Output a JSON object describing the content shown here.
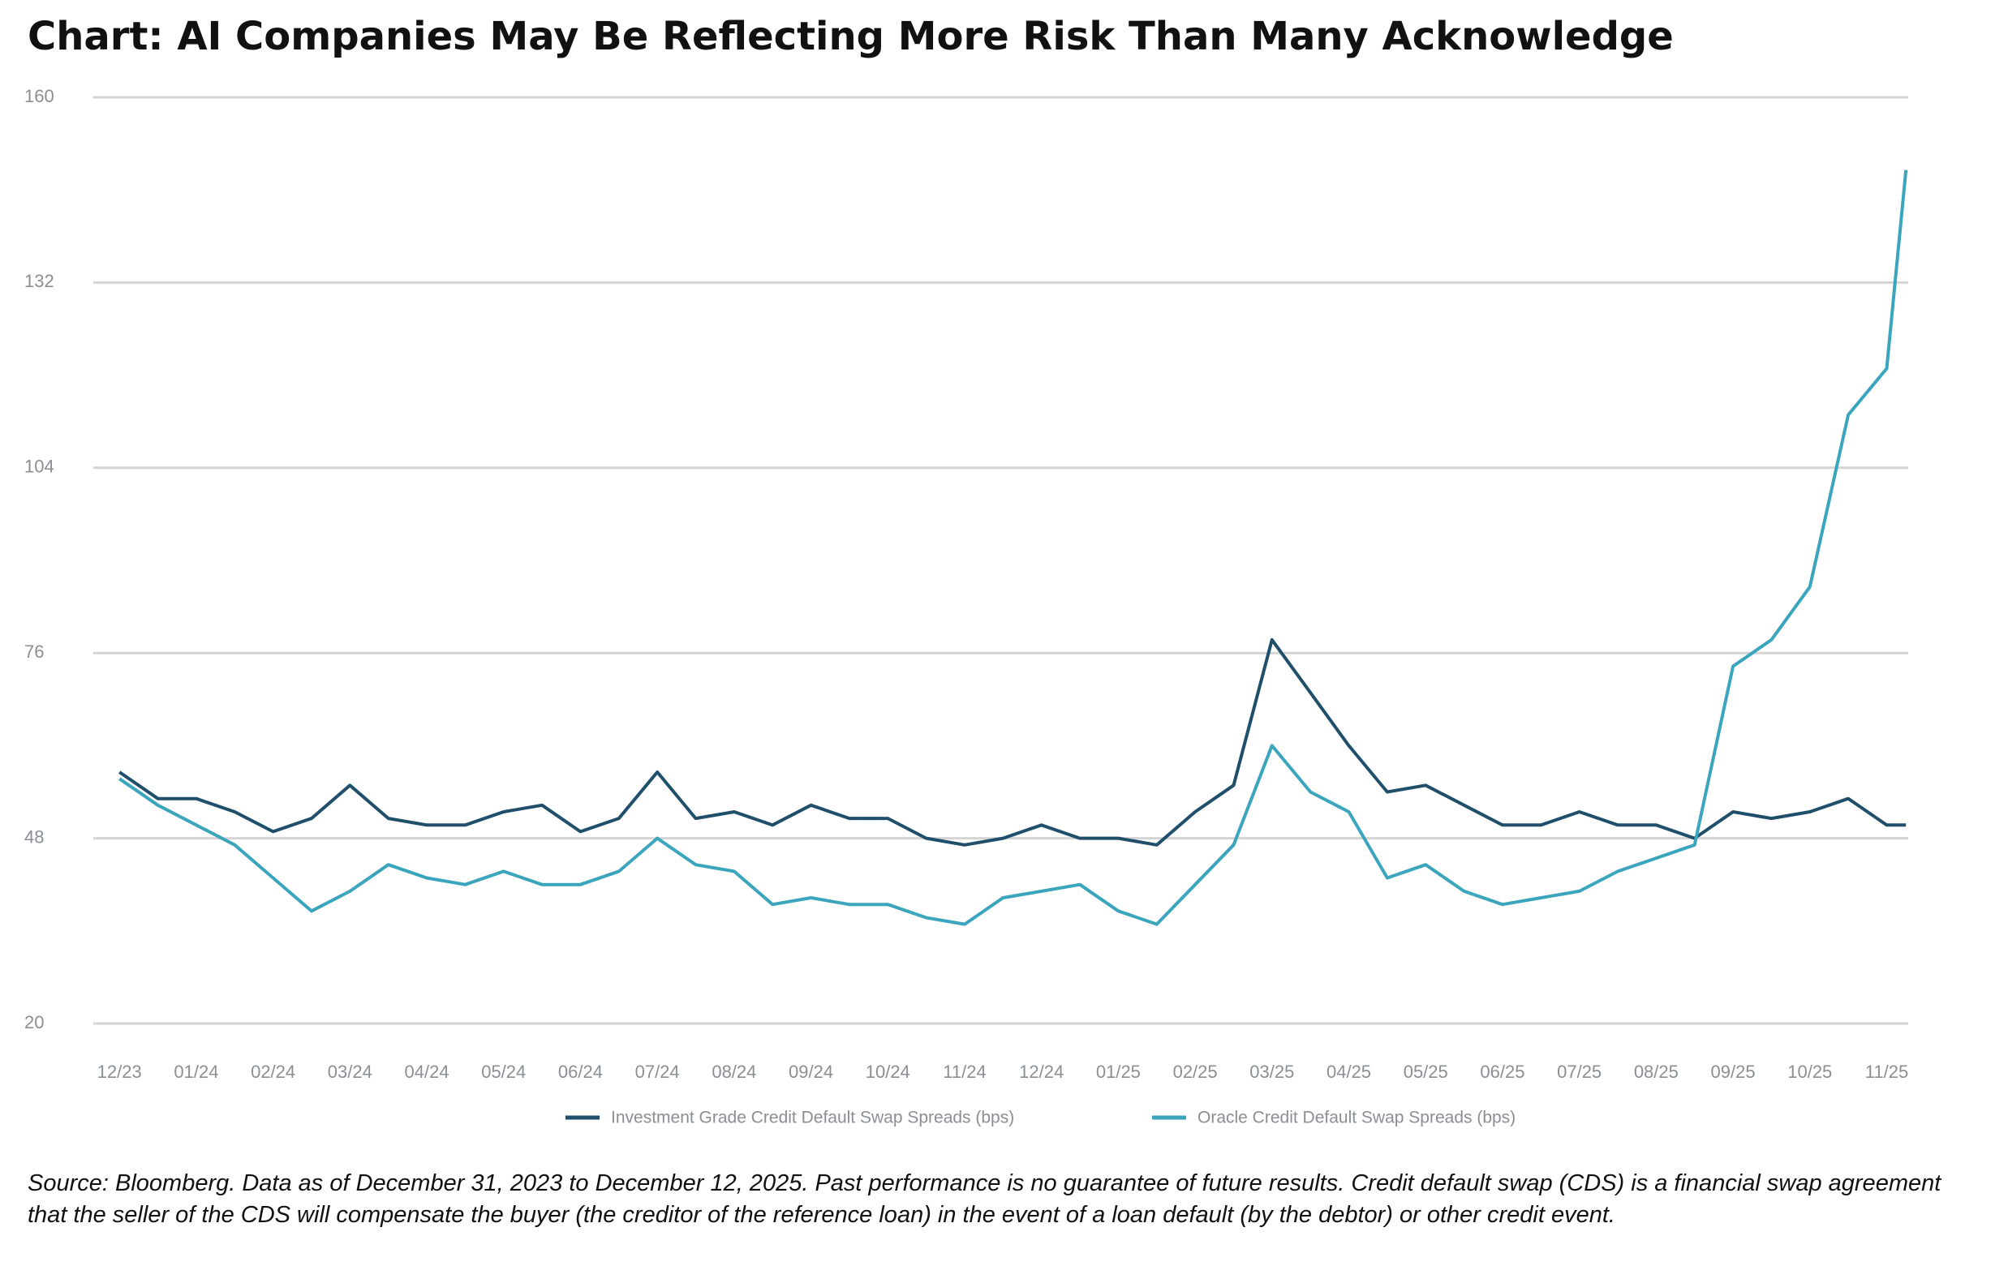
{
  "chart_data": {
    "type": "line",
    "title": "Chart: AI Companies May Be Reflecting More Risk Than Many Acknowledge",
    "note": "Source: Bloomberg. Data as of December 31, 2023 to December 12, 2025. Past performance is no guarantee of future results. Credit default swap (CDS) is a financial swap agreement that the seller of the CDS will compensate the buyer (the creditor of the reference loan) in the event of a loan default (by the debtor) or other credit event.",
    "x": [
      0,
      0.5,
      1,
      1.5,
      2,
      2.5,
      3,
      3.5,
      4,
      4.5,
      5,
      5.5,
      6,
      6.5,
      7,
      7.5,
      8,
      8.5,
      9,
      9.5,
      10,
      10.5,
      11,
      11.5,
      12,
      12.5,
      13,
      13.5,
      14,
      14.5,
      15,
      15.5,
      16,
      16.5,
      17,
      17.5,
      18,
      18.5,
      19,
      19.5,
      20,
      20.5,
      21,
      21.5,
      22,
      22.5,
      23,
      23.25
    ],
    "series": [
      {
        "name": "Investment Grade Credit Default Swap Spreads (bps)",
        "color": "#1f4f6a",
        "values": [
          58,
          54,
          54,
          52,
          49,
          51,
          56,
          51,
          50,
          50,
          52,
          53,
          49,
          51,
          58,
          51,
          52,
          50,
          53,
          51,
          51,
          48,
          47,
          48,
          50,
          48,
          48,
          47,
          52,
          56,
          78,
          70,
          62,
          55,
          56,
          53,
          50,
          50,
          52,
          50,
          50,
          48,
          52,
          51,
          52,
          54,
          50,
          50
        ]
      },
      {
        "name": "Oracle Credit Default Swap Spreads (bps)",
        "color": "#3aa5bd",
        "values": [
          57,
          53,
          50,
          47,
          42,
          37,
          40,
          44,
          42,
          41,
          43,
          41,
          41,
          43,
          48,
          44,
          43,
          38,
          39,
          38,
          38,
          36,
          35,
          39,
          40,
          41,
          37,
          35,
          41,
          47,
          62,
          55,
          52,
          42,
          44,
          40,
          38,
          39,
          40,
          43,
          45,
          47,
          74,
          78,
          86,
          112,
          119,
          149
        ]
      }
    ],
    "xlim": [
      -0.34,
      23.28
    ],
    "xticks": [
      {
        "value": 0,
        "label": "12/23"
      },
      {
        "value": 1,
        "label": "01/24"
      },
      {
        "value": 2,
        "label": "02/24"
      },
      {
        "value": 3,
        "label": "03/24"
      },
      {
        "value": 4,
        "label": "04/24"
      },
      {
        "value": 5,
        "label": "05/24"
      },
      {
        "value": 6,
        "label": "06/24"
      },
      {
        "value": 7,
        "label": "07/24"
      },
      {
        "value": 8,
        "label": "08/24"
      },
      {
        "value": 9,
        "label": "09/24"
      },
      {
        "value": 10,
        "label": "10/24"
      },
      {
        "value": 11,
        "label": "11/24"
      },
      {
        "value": 12,
        "label": "12/24"
      },
      {
        "value": 13,
        "label": "01/25"
      },
      {
        "value": 14,
        "label": "02/25"
      },
      {
        "value": 15,
        "label": "03/25"
      },
      {
        "value": 16,
        "label": "04/25"
      },
      {
        "value": 17,
        "label": "05/25"
      },
      {
        "value": 18,
        "label": "06/25"
      },
      {
        "value": 19,
        "label": "07/25"
      },
      {
        "value": 20,
        "label": "08/25"
      },
      {
        "value": 21,
        "label": "09/25"
      },
      {
        "value": 22,
        "label": "10/25"
      },
      {
        "value": 23,
        "label": "11/25"
      }
    ],
    "ylim": [
      20,
      160
    ],
    "yticks": [
      20,
      48,
      76,
      104,
      132,
      160
    ],
    "grid": true,
    "legend": "bottom"
  }
}
